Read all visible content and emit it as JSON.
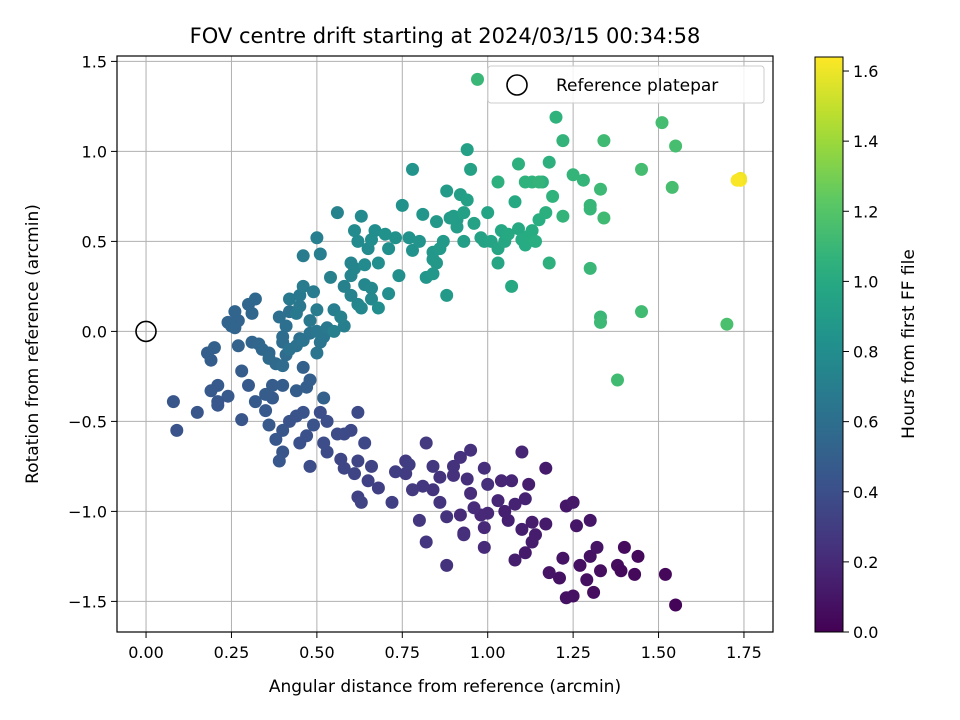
{
  "chart_data": {
    "type": "scatter",
    "title": "FOV centre drift starting at 2024/03/15 00:34:58",
    "xlabel": "Angular distance from reference (arcmin)",
    "ylabel": "Rotation from reference (arcmin)",
    "xlim": [
      -0.085,
      1.835
    ],
    "ylim": [
      -1.67,
      1.53
    ],
    "xticks": [
      0.0,
      0.25,
      0.5,
      0.75,
      1.0,
      1.25,
      1.5,
      1.75
    ],
    "xtick_labels": [
      "0.00",
      "0.25",
      "0.50",
      "0.75",
      "1.00",
      "1.25",
      "1.50",
      "1.75"
    ],
    "yticks": [
      -1.5,
      -1.0,
      -0.5,
      0.0,
      0.5,
      1.0,
      1.5
    ],
    "ytick_labels": [
      "−1.5",
      "−1.0",
      "−0.5",
      "0.0",
      "0.5",
      "1.0",
      "1.5"
    ],
    "grid": true,
    "legend": {
      "position": "top-right",
      "entries": [
        "Reference platepar"
      ]
    },
    "reference_point": {
      "x": 0.0,
      "y": 0.0,
      "label": "Reference platepar"
    },
    "colorbar": {
      "label": "Hours from first FF file",
      "colormap": "viridis",
      "range": [
        0.0,
        1.64
      ],
      "ticks": [
        0.0,
        0.2,
        0.4,
        0.6,
        0.8,
        1.0,
        1.2,
        1.4,
        1.6
      ],
      "tick_labels": [
        "0.0",
        "0.2",
        "0.4",
        "0.6",
        "0.8",
        "1.0",
        "1.2",
        "1.4",
        "1.6"
      ]
    },
    "points": [
      [
        1.55,
        -1.52,
        0.02
      ],
      [
        1.52,
        -1.35,
        0.03
      ],
      [
        1.43,
        -1.35,
        0.04
      ],
      [
        1.44,
        -1.25,
        0.04
      ],
      [
        1.4,
        -1.2,
        0.05
      ],
      [
        1.38,
        -1.3,
        0.05
      ],
      [
        1.39,
        -1.33,
        0.04
      ],
      [
        1.33,
        -1.33,
        0.06
      ],
      [
        1.31,
        -1.45,
        0.06
      ],
      [
        1.29,
        -1.38,
        0.07
      ],
      [
        1.25,
        -1.47,
        0.07
      ],
      [
        1.23,
        -1.48,
        0.08
      ],
      [
        1.27,
        -1.3,
        0.07
      ],
      [
        1.21,
        -1.37,
        0.08
      ],
      [
        1.18,
        -1.34,
        0.09
      ],
      [
        1.22,
        -1.26,
        0.09
      ],
      [
        1.3,
        -1.25,
        0.08
      ],
      [
        1.32,
        -1.2,
        0.09
      ],
      [
        1.26,
        -1.08,
        0.1
      ],
      [
        1.3,
        -1.05,
        0.1
      ],
      [
        1.23,
        -0.97,
        0.1
      ],
      [
        1.25,
        -0.95,
        0.11
      ],
      [
        1.17,
        -1.07,
        0.12
      ],
      [
        1.13,
        -1.06,
        0.13
      ],
      [
        1.14,
        -1.13,
        0.13
      ],
      [
        1.11,
        -1.23,
        0.12
      ],
      [
        1.13,
        -1.17,
        0.13
      ],
      [
        1.1,
        -1.1,
        0.14
      ],
      [
        1.08,
        -1.27,
        0.14
      ],
      [
        1.06,
        -1.05,
        0.15
      ],
      [
        1.05,
        -1.0,
        0.15
      ],
      [
        1.08,
        -0.96,
        0.16
      ],
      [
        1.11,
        -0.93,
        0.16
      ],
      [
        1.17,
        -0.76,
        0.12
      ],
      [
        1.12,
        -0.85,
        0.14
      ],
      [
        1.07,
        -0.83,
        0.17
      ],
      [
        1.1,
        -0.67,
        0.17
      ],
      [
        1.04,
        -0.83,
        0.18
      ],
      [
        1.03,
        -0.94,
        0.18
      ],
      [
        1.0,
        -1.01,
        0.19
      ],
      [
        0.99,
        -1.09,
        0.19
      ],
      [
        0.98,
        -1.02,
        0.19
      ],
      [
        0.99,
        -1.2,
        0.2
      ],
      [
        0.93,
        -1.12,
        0.2
      ],
      [
        0.92,
        -1.02,
        0.2
      ],
      [
        0.96,
        -0.98,
        0.21
      ],
      [
        0.95,
        -0.9,
        0.21
      ],
      [
        1.0,
        -0.85,
        0.22
      ],
      [
        0.99,
        -0.76,
        0.22
      ],
      [
        0.94,
        -0.82,
        0.22
      ],
      [
        0.9,
        -0.8,
        0.23
      ],
      [
        0.92,
        -0.7,
        0.23
      ],
      [
        0.95,
        -0.66,
        0.23
      ],
      [
        0.9,
        -0.75,
        0.24
      ],
      [
        0.86,
        -0.81,
        0.24
      ],
      [
        0.84,
        -0.88,
        0.25
      ],
      [
        0.86,
        -0.95,
        0.25
      ],
      [
        0.88,
        -1.03,
        0.24
      ],
      [
        0.8,
        -1.05,
        0.26
      ],
      [
        0.82,
        -1.17,
        0.26
      ],
      [
        0.93,
        -1.13,
        0.22
      ],
      [
        0.88,
        -1.3,
        0.24
      ],
      [
        0.84,
        -0.75,
        0.27
      ],
      [
        0.81,
        -0.86,
        0.27
      ],
      [
        0.78,
        -0.88,
        0.28
      ],
      [
        0.82,
        -0.62,
        0.28
      ],
      [
        0.76,
        -0.79,
        0.29
      ],
      [
        0.76,
        -0.72,
        0.29
      ],
      [
        0.77,
        -0.74,
        0.3
      ],
      [
        0.73,
        -0.78,
        0.3
      ],
      [
        0.68,
        -0.87,
        0.31
      ],
      [
        0.72,
        -0.95,
        0.31
      ],
      [
        0.65,
        -0.83,
        0.32
      ],
      [
        0.62,
        -0.92,
        0.32
      ],
      [
        0.63,
        -0.95,
        0.33
      ],
      [
        0.66,
        -0.75,
        0.33
      ],
      [
        0.62,
        -0.72,
        0.34
      ],
      [
        0.61,
        -0.79,
        0.34
      ],
      [
        0.58,
        -0.76,
        0.35
      ],
      [
        0.57,
        -0.71,
        0.35
      ],
      [
        0.64,
        -0.62,
        0.36
      ],
      [
        0.6,
        -0.55,
        0.36
      ],
      [
        0.58,
        -0.57,
        0.37
      ],
      [
        0.62,
        -0.45,
        0.37
      ],
      [
        0.56,
        -0.57,
        0.38
      ],
      [
        0.53,
        -0.67,
        0.38
      ],
      [
        0.48,
        -0.75,
        0.39
      ],
      [
        0.52,
        -0.62,
        0.39
      ],
      [
        0.53,
        -0.5,
        0.4
      ],
      [
        0.51,
        -0.45,
        0.4
      ],
      [
        0.47,
        -0.58,
        0.41
      ],
      [
        0.45,
        -0.62,
        0.41
      ],
      [
        0.49,
        -0.52,
        0.42
      ],
      [
        0.44,
        -0.47,
        0.42
      ],
      [
        0.46,
        -0.45,
        0.43
      ],
      [
        0.42,
        -0.5,
        0.43
      ],
      [
        0.4,
        -0.55,
        0.44
      ],
      [
        0.4,
        -0.67,
        0.44
      ],
      [
        0.39,
        -0.72,
        0.45
      ],
      [
        0.38,
        -0.6,
        0.45
      ],
      [
        0.36,
        -0.52,
        0.46
      ],
      [
        0.35,
        -0.44,
        0.46
      ],
      [
        0.37,
        -0.37,
        0.47
      ],
      [
        0.32,
        -0.39,
        0.47
      ],
      [
        0.35,
        -0.35,
        0.48
      ],
      [
        0.37,
        -0.3,
        0.48
      ],
      [
        0.4,
        -0.3,
        0.49
      ],
      [
        0.44,
        -0.33,
        0.49
      ],
      [
        0.47,
        -0.31,
        0.5
      ],
      [
        0.48,
        -0.27,
        0.5
      ],
      [
        0.52,
        -0.37,
        0.51
      ],
      [
        0.46,
        -0.2,
        0.51
      ],
      [
        0.3,
        -0.3,
        0.47
      ],
      [
        0.28,
        -0.22,
        0.48
      ],
      [
        0.28,
        -0.49,
        0.44
      ],
      [
        0.24,
        -0.36,
        0.46
      ],
      [
        0.21,
        -0.3,
        0.47
      ],
      [
        0.21,
        -0.39,
        0.45
      ],
      [
        0.19,
        -0.33,
        0.46
      ],
      [
        0.21,
        -0.41,
        0.45
      ],
      [
        0.15,
        -0.45,
        0.44
      ],
      [
        0.09,
        -0.55,
        0.43
      ],
      [
        0.08,
        -0.39,
        0.44
      ],
      [
        0.19,
        -0.16,
        0.49
      ],
      [
        0.18,
        -0.12,
        0.5
      ],
      [
        0.2,
        -0.09,
        0.51
      ],
      [
        0.27,
        -0.08,
        0.52
      ],
      [
        0.26,
        0.02,
        0.53
      ],
      [
        0.27,
        0.06,
        0.53
      ],
      [
        0.26,
        0.11,
        0.54
      ],
      [
        0.24,
        0.05,
        0.53
      ],
      [
        0.25,
        0.03,
        0.54
      ],
      [
        0.31,
        0.1,
        0.55
      ],
      [
        0.3,
        0.15,
        0.55
      ],
      [
        0.32,
        0.18,
        0.56
      ],
      [
        0.31,
        -0.06,
        0.54
      ],
      [
        0.33,
        -0.07,
        0.55
      ],
      [
        0.34,
        -0.1,
        0.56
      ],
      [
        0.36,
        -0.12,
        0.56
      ],
      [
        0.36,
        -0.15,
        0.57
      ],
      [
        0.38,
        -0.18,
        0.57
      ],
      [
        0.4,
        -0.19,
        0.58
      ],
      [
        0.41,
        -0.13,
        0.58
      ],
      [
        0.4,
        -0.06,
        0.59
      ],
      [
        0.4,
        -0.03,
        0.59
      ],
      [
        0.41,
        0.03,
        0.6
      ],
      [
        0.39,
        0.08,
        0.6
      ],
      [
        0.42,
        0.11,
        0.61
      ],
      [
        0.45,
        -0.04,
        0.61
      ],
      [
        0.44,
        -0.08,
        0.62
      ],
      [
        0.42,
        -0.1,
        0.62
      ],
      [
        0.46,
        -0.05,
        0.63
      ],
      [
        0.48,
        -0.01,
        0.63
      ],
      [
        0.51,
        -0.06,
        0.64
      ],
      [
        0.5,
        -0.12,
        0.64
      ],
      [
        0.5,
        0.0,
        0.65
      ],
      [
        0.52,
        -0.03,
        0.65
      ],
      [
        0.53,
        0.02,
        0.66
      ],
      [
        0.48,
        0.06,
        0.66
      ],
      [
        0.45,
        0.14,
        0.66
      ],
      [
        0.45,
        0.2,
        0.67
      ],
      [
        0.44,
        0.1,
        0.67
      ],
      [
        0.42,
        0.18,
        0.67
      ],
      [
        0.46,
        0.25,
        0.68
      ],
      [
        0.49,
        0.22,
        0.68
      ],
      [
        0.5,
        0.12,
        0.69
      ],
      [
        0.46,
        0.42,
        0.69
      ],
      [
        0.51,
        0.43,
        0.7
      ],
      [
        0.5,
        0.52,
        0.7
      ],
      [
        0.55,
        0.12,
        0.7
      ],
      [
        0.55,
        0.0,
        0.71
      ],
      [
        0.58,
        0.03,
        0.71
      ],
      [
        0.57,
        0.08,
        0.72
      ],
      [
        0.58,
        0.25,
        0.72
      ],
      [
        0.54,
        0.3,
        0.72
      ],
      [
        0.56,
        0.66,
        0.73
      ],
      [
        0.6,
        0.2,
        0.73
      ],
      [
        0.6,
        0.31,
        0.74
      ],
      [
        0.6,
        0.38,
        0.74
      ],
      [
        0.61,
        0.35,
        0.75
      ],
      [
        0.62,
        0.15,
        0.75
      ],
      [
        0.63,
        0.13,
        0.76
      ],
      [
        0.64,
        0.26,
        0.76
      ],
      [
        0.66,
        0.18,
        0.77
      ],
      [
        0.66,
        0.24,
        0.77
      ],
      [
        0.64,
        0.37,
        0.78
      ],
      [
        0.61,
        0.56,
        0.78
      ],
      [
        0.63,
        0.64,
        0.79
      ],
      [
        0.62,
        0.5,
        0.79
      ],
      [
        0.65,
        0.46,
        0.79
      ],
      [
        0.66,
        0.51,
        0.8
      ],
      [
        0.67,
        0.56,
        0.8
      ],
      [
        0.68,
        0.13,
        0.8
      ],
      [
        0.68,
        0.38,
        0.81
      ],
      [
        0.71,
        0.21,
        0.81
      ],
      [
        0.71,
        0.46,
        0.82
      ],
      [
        0.74,
        0.31,
        0.82
      ],
      [
        0.73,
        0.52,
        0.83
      ],
      [
        0.75,
        0.7,
        0.83
      ],
      [
        0.7,
        0.54,
        0.83
      ],
      [
        0.77,
        0.52,
        0.84
      ],
      [
        0.78,
        0.45,
        0.84
      ],
      [
        0.8,
        0.5,
        0.85
      ],
      [
        0.78,
        0.9,
        0.85
      ],
      [
        0.81,
        0.65,
        0.86
      ],
      [
        0.82,
        0.3,
        0.86
      ],
      [
        0.84,
        0.32,
        0.87
      ],
      [
        0.84,
        0.4,
        0.87
      ],
      [
        0.84,
        0.44,
        0.87
      ],
      [
        0.85,
        0.38,
        0.88
      ],
      [
        0.85,
        0.61,
        0.88
      ],
      [
        0.86,
        0.46,
        0.89
      ],
      [
        0.88,
        0.2,
        0.89
      ],
      [
        0.87,
        0.5,
        0.89
      ],
      [
        0.88,
        0.78,
        0.9
      ],
      [
        0.89,
        0.63,
        0.9
      ],
      [
        0.9,
        0.64,
        0.91
      ],
      [
        0.91,
        0.58,
        0.91
      ],
      [
        0.91,
        0.62,
        0.91
      ],
      [
        0.92,
        0.76,
        0.92
      ],
      [
        0.93,
        0.5,
        0.92
      ],
      [
        0.93,
        0.66,
        0.93
      ],
      [
        0.94,
        0.73,
        0.93
      ],
      [
        0.94,
        1.01,
        0.93
      ],
      [
        0.95,
        0.9,
        0.94
      ],
      [
        0.96,
        0.6,
        0.94
      ],
      [
        0.98,
        0.52,
        0.95
      ],
      [
        0.99,
        0.5,
        0.95
      ],
      [
        1.0,
        0.66,
        0.96
      ],
      [
        1.01,
        0.5,
        0.96
      ],
      [
        1.03,
        0.46,
        0.97
      ],
      [
        1.03,
        0.38,
        0.97
      ],
      [
        1.04,
        0.56,
        0.98
      ],
      [
        1.05,
        0.5,
        0.98
      ],
      [
        1.06,
        0.54,
        0.99
      ],
      [
        1.07,
        0.25,
        0.99
      ],
      [
        1.08,
        0.72,
        1.0
      ],
      [
        1.09,
        0.57,
        1.0
      ],
      [
        1.1,
        0.51,
        1.01
      ],
      [
        1.11,
        0.48,
        1.01
      ],
      [
        1.12,
        0.53,
        1.02
      ],
      [
        1.13,
        0.56,
        1.02
      ],
      [
        1.14,
        0.5,
        1.03
      ],
      [
        1.15,
        0.62,
        1.03
      ],
      [
        1.16,
        0.83,
        1.04
      ],
      [
        1.17,
        0.66,
        1.04
      ],
      [
        1.18,
        0.38,
        1.05
      ],
      [
        1.18,
        0.94,
        1.05
      ],
      [
        1.19,
        0.75,
        1.06
      ],
      [
        1.2,
        1.19,
        1.06
      ],
      [
        1.22,
        1.06,
        1.07
      ],
      [
        1.22,
        0.64,
        1.07
      ],
      [
        1.03,
        0.83,
        1.05
      ],
      [
        1.09,
        0.93,
        1.05
      ],
      [
        1.11,
        0.83,
        1.06
      ],
      [
        1.13,
        0.83,
        1.06
      ],
      [
        1.15,
        0.83,
        1.07
      ],
      [
        1.25,
        0.87,
        1.08
      ],
      [
        1.28,
        0.84,
        1.08
      ],
      [
        1.3,
        0.7,
        1.09
      ],
      [
        1.3,
        0.68,
        1.09
      ],
      [
        1.3,
        0.35,
        1.1
      ],
      [
        1.33,
        0.08,
        1.1
      ],
      [
        1.33,
        0.05,
        1.11
      ],
      [
        1.33,
        0.79,
        1.11
      ],
      [
        1.34,
        0.63,
        1.12
      ],
      [
        1.34,
        1.06,
        1.12
      ],
      [
        1.38,
        -0.27,
        1.13
      ],
      [
        1.45,
        0.11,
        1.13
      ],
      [
        1.45,
        0.9,
        1.14
      ],
      [
        1.51,
        1.16,
        1.14
      ],
      [
        1.54,
        0.8,
        1.15
      ],
      [
        1.55,
        1.03,
        1.15
      ],
      [
        1.7,
        0.04,
        1.16
      ],
      [
        0.97,
        1.4,
        1.1
      ],
      [
        1.74,
        0.84,
        1.63
      ],
      [
        1.74,
        0.84,
        1.62
      ],
      [
        1.74,
        0.84,
        1.64
      ],
      [
        1.74,
        0.85,
        1.61
      ],
      [
        1.73,
        0.84,
        1.63
      ]
    ]
  }
}
